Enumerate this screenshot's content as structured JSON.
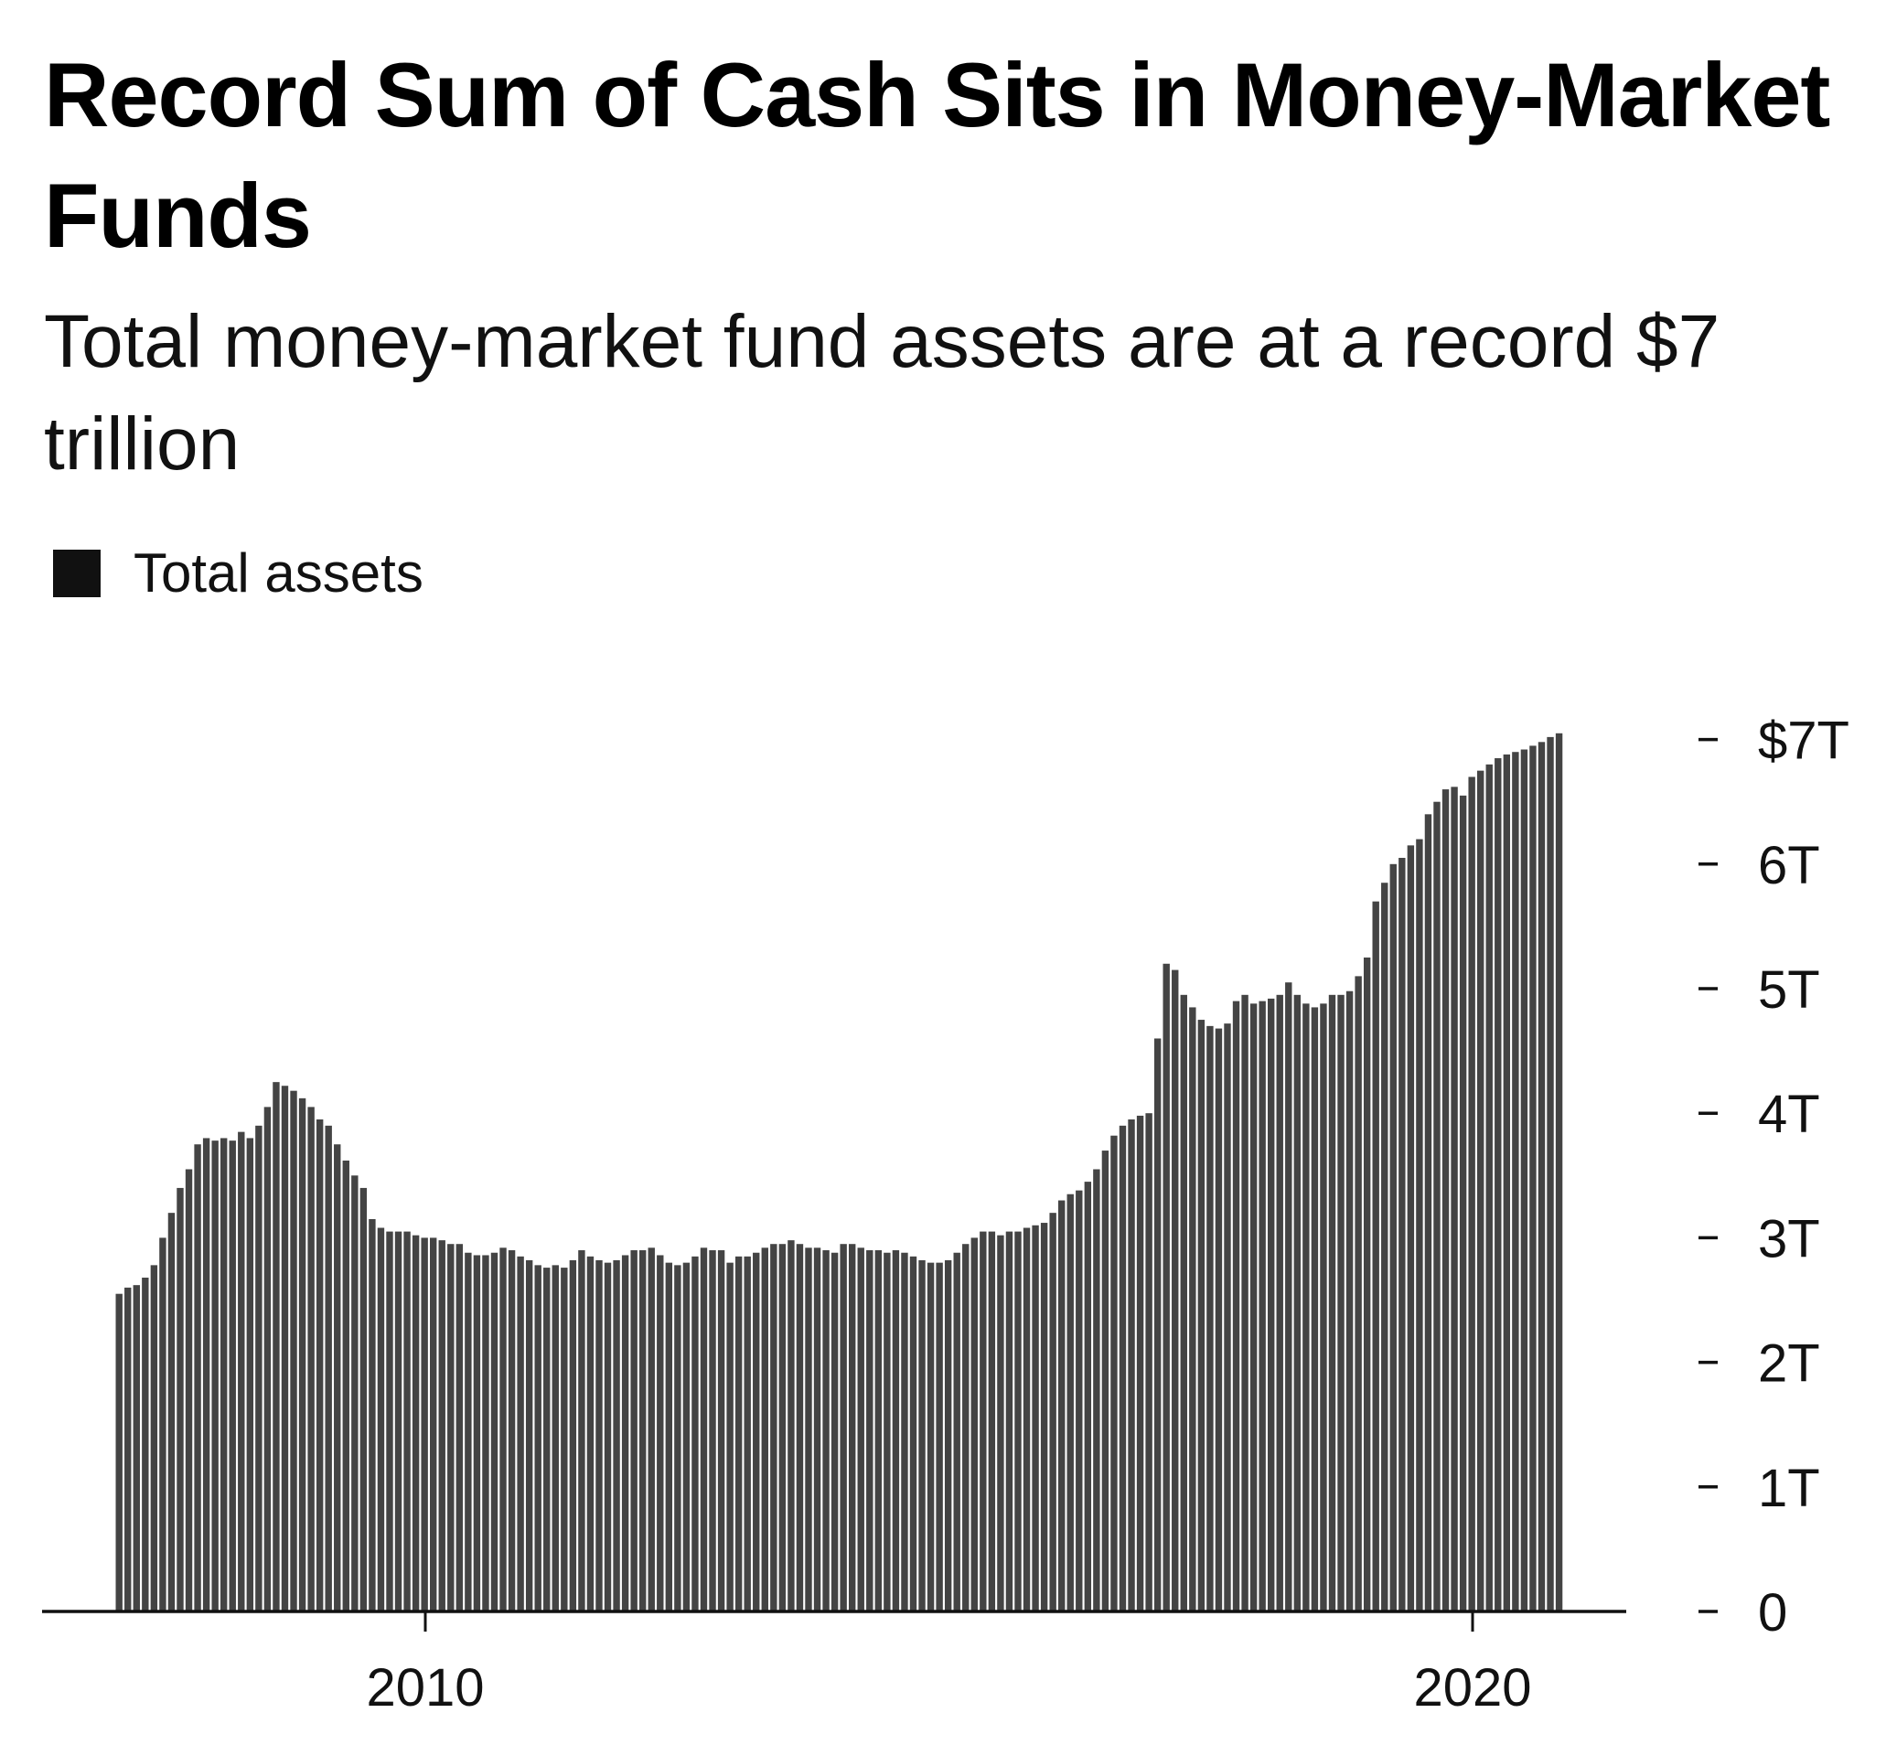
{
  "chart_data": {
    "type": "bar",
    "title": "Record Sum of Cash Sits in Money-Market Funds",
    "subtitle": "Total money-market fund assets are at a record $7 trillion",
    "legend": [
      {
        "name": "Total assets",
        "color": "#111111"
      }
    ],
    "legend_position": "top-left",
    "xlabel": "",
    "ylabel": "",
    "x_start": "2007-01",
    "frequency": "monthly",
    "unit": "trillions USD",
    "ylim": [
      0,
      7
    ],
    "y_ticks": [
      {
        "value": 0,
        "label": "0"
      },
      {
        "value": 1,
        "label": "1T"
      },
      {
        "value": 2,
        "label": "2T"
      },
      {
        "value": 3,
        "label": "3T"
      },
      {
        "value": 4,
        "label": "4T"
      },
      {
        "value": 5,
        "label": "5T"
      },
      {
        "value": 6,
        "label": "6T"
      },
      {
        "value": 7,
        "label": "$7T"
      }
    ],
    "x_ticks": [
      {
        "value": 2010,
        "label": "2010"
      },
      {
        "value": 2020,
        "label": "2020"
      }
    ],
    "xlim": [
      2006.45,
      2021.9
    ],
    "grid": false,
    "bar_color": "#444444",
    "values": [
      2.55,
      2.6,
      2.62,
      2.68,
      2.78,
      3.0,
      3.2,
      3.4,
      3.55,
      3.75,
      3.8,
      3.78,
      3.8,
      3.78,
      3.85,
      3.8,
      3.9,
      4.05,
      4.25,
      4.22,
      4.18,
      4.12,
      4.05,
      3.95,
      3.9,
      3.75,
      3.62,
      3.5,
      3.4,
      3.15,
      3.08,
      3.05,
      3.05,
      3.05,
      3.02,
      3.0,
      3.0,
      2.98,
      2.95,
      2.95,
      2.88,
      2.86,
      2.86,
      2.88,
      2.92,
      2.9,
      2.85,
      2.82,
      2.78,
      2.76,
      2.78,
      2.76,
      2.82,
      2.9,
      2.85,
      2.82,
      2.8,
      2.82,
      2.86,
      2.9,
      2.9,
      2.92,
      2.86,
      2.8,
      2.78,
      2.8,
      2.85,
      2.92,
      2.9,
      2.9,
      2.8,
      2.85,
      2.85,
      2.88,
      2.92,
      2.95,
      2.95,
      2.98,
      2.95,
      2.92,
      2.92,
      2.9,
      2.88,
      2.95,
      2.95,
      2.92,
      2.9,
      2.9,
      2.88,
      2.9,
      2.88,
      2.85,
      2.82,
      2.8,
      2.8,
      2.82,
      2.88,
      2.95,
      3.0,
      3.05,
      3.05,
      3.02,
      3.05,
      3.05,
      3.08,
      3.1,
      3.12,
      3.2,
      3.3,
      3.35,
      3.38,
      3.45,
      3.55,
      3.7,
      3.82,
      3.9,
      3.95,
      3.98,
      4.0,
      4.6,
      5.2,
      5.15,
      4.95,
      4.85,
      4.75,
      4.7,
      4.68,
      4.72,
      4.9,
      4.95,
      4.88,
      4.9,
      4.92,
      4.95,
      5.05,
      4.95,
      4.88,
      4.85,
      4.88,
      4.95,
      4.95,
      4.98,
      5.1,
      5.25,
      5.7,
      5.85,
      6.0,
      6.05,
      6.15,
      6.2,
      6.4,
      6.5,
      6.6,
      6.62,
      6.55,
      6.7,
      6.75,
      6.8,
      6.85,
      6.88,
      6.9,
      6.92,
      6.95,
      6.98,
      7.02,
      7.05
    ]
  }
}
